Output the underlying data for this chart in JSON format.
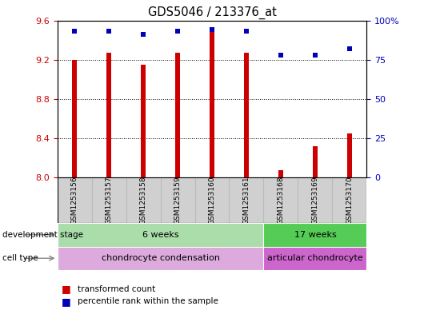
{
  "title": "GDS5046 / 213376_at",
  "samples": [
    "GSM1253156",
    "GSM1253157",
    "GSM1253158",
    "GSM1253159",
    "GSM1253160",
    "GSM1253161",
    "GSM1253168",
    "GSM1253169",
    "GSM1253170"
  ],
  "transformed_counts": [
    9.2,
    9.27,
    9.15,
    9.27,
    9.53,
    9.27,
    8.07,
    8.32,
    8.45
  ],
  "percentile_ranks": [
    93,
    93,
    91,
    93,
    94,
    93,
    78,
    78,
    82
  ],
  "ylim_left": [
    8.0,
    9.6
  ],
  "ylim_right": [
    0,
    100
  ],
  "yticks_left": [
    8.0,
    8.4,
    8.8,
    9.2,
    9.6
  ],
  "yticks_right": [
    0,
    25,
    50,
    75,
    100
  ],
  "bar_color": "#cc0000",
  "dot_color": "#0000bb",
  "bar_width": 0.12,
  "grid_yticks": [
    9.2,
    8.8,
    8.4
  ],
  "background_color": "#ffffff",
  "left_axis_color": "#cc0000",
  "right_axis_color": "#0000bb",
  "development_stage_groups": [
    {
      "label": "6 weeks",
      "start": 0,
      "end": 5,
      "color": "#aaddaa"
    },
    {
      "label": "17 weeks",
      "start": 6,
      "end": 8,
      "color": "#55cc55"
    }
  ],
  "cell_type_groups": [
    {
      "label": "chondrocyte condensation",
      "start": 0,
      "end": 5,
      "color": "#ddaadd"
    },
    {
      "label": "articular chondrocyte",
      "start": 6,
      "end": 8,
      "color": "#cc66cc"
    }
  ],
  "dev_stage_label": "development stage",
  "cell_type_label": "cell type",
  "legend_bar_label": "transformed count",
  "legend_dot_label": "percentile rank within the sample",
  "xtick_gray": "#d0d0d0",
  "xtick_sep_color": "#bbbbbb"
}
